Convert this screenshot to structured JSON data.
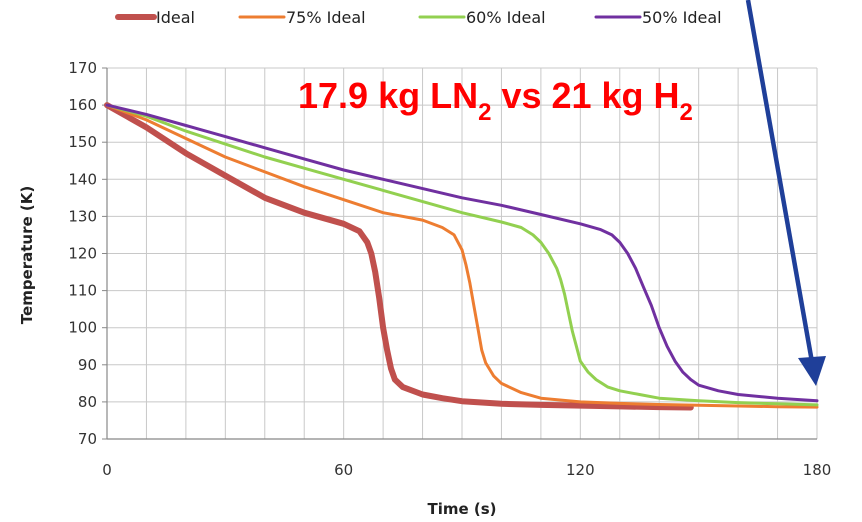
{
  "chart_data": {
    "type": "line",
    "title": "",
    "xlabel": "Time (s)",
    "ylabel": "Temperature (K)",
    "xlim": [
      0,
      180
    ],
    "ylim": [
      70,
      170
    ],
    "x_ticks": [
      0,
      60,
      120,
      180
    ],
    "y_ticks": [
      70,
      80,
      90,
      100,
      110,
      120,
      130,
      140,
      150,
      160,
      170
    ],
    "grid": true,
    "legend_position": "top",
    "series": [
      {
        "name": "Ideal",
        "color": "#c0504d",
        "x": [
          0,
          10,
          20,
          30,
          40,
          50,
          60,
          64,
          66,
          67,
          68,
          69,
          70,
          71,
          72,
          73,
          75,
          80,
          85,
          90,
          100,
          110,
          120,
          130,
          140,
          148
        ],
        "y": [
          160,
          154,
          147,
          141,
          135,
          131,
          128,
          126,
          123,
          120,
          115,
          108,
          100,
          94,
          89,
          86,
          84,
          82,
          81,
          80.2,
          79.5,
          79.2,
          79,
          78.8,
          78.6,
          78.5
        ]
      },
      {
        "name": "75% Ideal",
        "color": "#ed7d31",
        "x": [
          0,
          10,
          20,
          30,
          40,
          50,
          60,
          70,
          80,
          85,
          88,
          90,
          91,
          92,
          93,
          94,
          95,
          96,
          98,
          100,
          105,
          110,
          120,
          130,
          140,
          150,
          160,
          170,
          180
        ],
        "y": [
          160,
          156,
          151,
          146,
          142,
          138,
          134.5,
          131,
          129,
          127,
          125,
          121,
          117,
          112,
          106,
          100,
          94,
          90.5,
          87,
          85,
          82.5,
          81,
          80,
          79.6,
          79.3,
          79.1,
          78.9,
          78.7,
          78.6
        ]
      },
      {
        "name": "60% Ideal",
        "color": "#92d050",
        "x": [
          0,
          10,
          20,
          30,
          40,
          50,
          60,
          70,
          80,
          90,
          100,
          105,
          108,
          110,
          112,
          114,
          115,
          116,
          117,
          118,
          119,
          120,
          122,
          124,
          127,
          130,
          135,
          140,
          150,
          160,
          170,
          180
        ],
        "y": [
          160,
          157,
          153,
          149.5,
          146,
          143,
          140,
          137,
          134,
          131,
          128.5,
          127,
          125,
          123,
          120,
          116,
          113,
          109,
          104,
          99,
          95,
          91,
          88,
          86,
          84,
          83,
          82,
          81,
          80.3,
          79.8,
          79.5,
          79.2
        ]
      },
      {
        "name": "50% Ideal",
        "color": "#7030a0",
        "x": [
          0,
          10,
          20,
          30,
          40,
          50,
          60,
          70,
          80,
          90,
          100,
          110,
          120,
          125,
          128,
          130,
          132,
          134,
          136,
          138,
          140,
          142,
          144,
          146,
          148,
          150,
          155,
          160,
          170,
          180
        ],
        "y": [
          160,
          157.5,
          154.5,
          151.5,
          148.5,
          145.5,
          142.5,
          140,
          137.5,
          135,
          133,
          130.5,
          128,
          126.5,
          125,
          123,
          120,
          116,
          111,
          106,
          100,
          95,
          91,
          88,
          86,
          84.5,
          83,
          82,
          81,
          80.3
        ]
      }
    ],
    "annotation": {
      "prefix": "17.9 kg LN",
      "sub1": "2",
      "middle": " vs 21 kg H",
      "sub2": "2",
      "color": "#ff0000"
    },
    "arrow_color": "#1f3f99"
  }
}
